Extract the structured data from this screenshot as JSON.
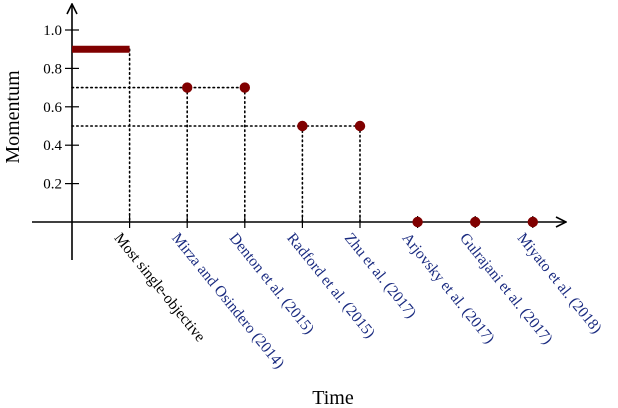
{
  "chart_data": {
    "type": "scatter",
    "xlabel": "Time",
    "ylabel": "Momentum",
    "ylim": [
      0,
      1.0
    ],
    "yticks": [
      "0.2",
      "0.4",
      "0.6",
      "0.8",
      "1.0"
    ],
    "ytick_values": [
      0.2,
      0.4,
      0.6,
      0.8,
      1.0
    ],
    "grid": false,
    "colors": {
      "marker": "#800000",
      "highlight_label": "#1a2b80",
      "default_label": "#000000",
      "axis": "#000000"
    },
    "categories": [
      "Most single-objective",
      "Mirza and Osindero (2014)",
      "Denton et al. (2015)",
      "Radford et al. (2015)",
      "Zhu et al. (2017)",
      "Arjovsky et al. (2017)",
      "Gulrajani et al. (2017)",
      "Miyato et al. (2018)"
    ],
    "category_highlight": [
      false,
      true,
      true,
      true,
      true,
      true,
      true,
      true
    ],
    "values": [
      0.9,
      0.7,
      0.7,
      0.5,
      0.5,
      0.0,
      0.0,
      0.0
    ],
    "segments": [
      {
        "x_from": -1,
        "x_to": 0,
        "y": 0.9
      }
    ],
    "guides": [
      {
        "y": 0.7,
        "x_to": 2
      },
      {
        "y": 0.5,
        "x_to": 4
      }
    ]
  }
}
